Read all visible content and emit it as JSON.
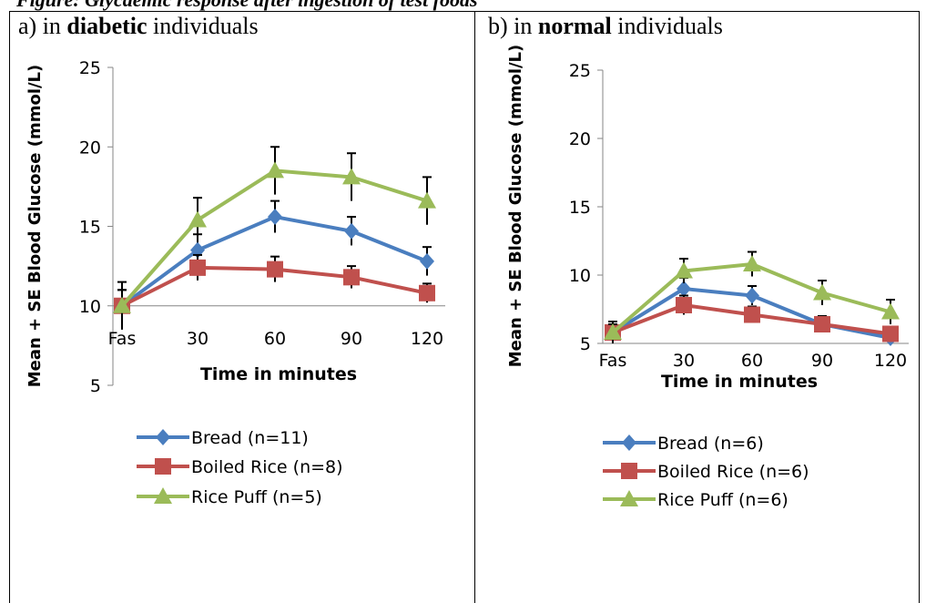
{
  "caption": "Figure: Glycaemic response after ingestion of test foods",
  "panels": [
    {
      "prefix": "a) in ",
      "bold": "diabetic",
      "suffix": " individuals"
    },
    {
      "prefix": "b) in ",
      "bold": "normal",
      "suffix": " individuals"
    }
  ],
  "colors": {
    "Bread": "#4a7ebf",
    "Boiled Rice": "#c0504d",
    "Rice Puff": "#9bbb59"
  },
  "chart_data": [
    {
      "type": "line",
      "categories": [
        "Fas",
        "30",
        "60",
        "90",
        "120"
      ],
      "xlabel": "Time in minutes",
      "ylabel": "Mean + SE Blood Glucose (mmol/L)",
      "ylim": [
        5,
        25
      ],
      "yticks": [
        5,
        10,
        15,
        20,
        25
      ],
      "grid": false,
      "legend": "bottom",
      "series": [
        {
          "name": "Bread (n=11)",
          "marker": "diamond",
          "values": [
            10,
            13.5,
            15.6,
            14.7,
            12.8
          ],
          "se": [
            1.5,
            1.0,
            1.0,
            0.9,
            0.9
          ]
        },
        {
          "name": "Boiled Rice (n=8)",
          "marker": "square",
          "values": [
            10,
            12.4,
            12.3,
            11.8,
            10.8
          ],
          "se": [
            1.0,
            0.8,
            0.8,
            0.7,
            0.6
          ]
        },
        {
          "name": "Rice Puff (n=5)",
          "marker": "triangle",
          "values": [
            10,
            15.4,
            18.5,
            18.1,
            16.6
          ],
          "se": [
            1.0,
            1.4,
            1.5,
            1.5,
            1.5
          ]
        }
      ]
    },
    {
      "type": "line",
      "categories": [
        "Fas",
        "30",
        "60",
        "90",
        "120"
      ],
      "xlabel": "Time in minutes",
      "ylabel": "Mean + SE Blood Glucose (mmol/L)",
      "ylim": [
        5,
        25
      ],
      "yticks": [
        5,
        10,
        15,
        20,
        25
      ],
      "grid": false,
      "legend": "bottom",
      "series": [
        {
          "name": "Bread (n=6)",
          "marker": "diamond",
          "values": [
            5.8,
            9.0,
            8.5,
            6.4,
            5.4
          ],
          "se": [
            0.8,
            0.8,
            0.7,
            0.6,
            0.4
          ]
        },
        {
          "name": "Boiled Rice (n=6)",
          "marker": "square",
          "values": [
            5.8,
            7.8,
            7.1,
            6.4,
            5.7
          ],
          "se": [
            0.6,
            0.7,
            0.6,
            0.6,
            0.5
          ]
        },
        {
          "name": "Rice Puff (n=6)",
          "marker": "triangle",
          "values": [
            5.8,
            10.3,
            10.8,
            8.7,
            7.3
          ],
          "se": [
            0.6,
            0.9,
            0.9,
            0.9,
            0.9
          ]
        }
      ]
    }
  ]
}
